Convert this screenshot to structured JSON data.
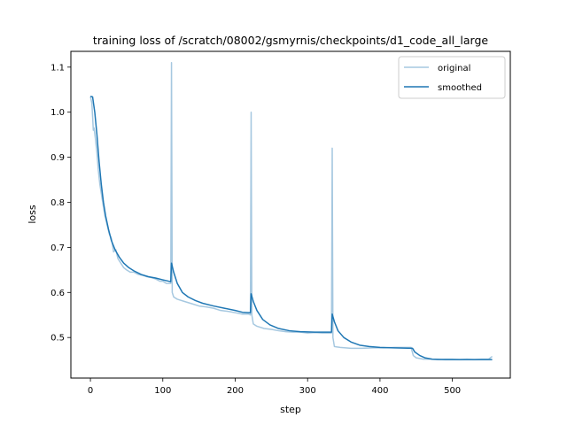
{
  "chart_data": {
    "type": "line",
    "title": "training loss of /scratch/08002/gsmyrnis/checkpoints/d1_code_all_large",
    "xlabel": "step",
    "ylabel": "loss",
    "xlim": [
      -27,
      580
    ],
    "ylim": [
      0.41,
      1.135
    ],
    "xticks": [
      0,
      100,
      200,
      300,
      400,
      500
    ],
    "yticks": [
      0.5,
      0.6,
      0.7,
      0.8,
      0.9,
      1.0,
      1.1
    ],
    "ytick_labels": [
      "0.5",
      "0.6",
      "0.7",
      "0.8",
      "0.9",
      "1.0",
      "1.1"
    ],
    "legend": {
      "position": "top-right",
      "entries": [
        "original",
        "smoothed"
      ]
    },
    "colors": {
      "original": "#a6c8e0",
      "smoothed": "#1f77b4"
    },
    "series": [
      {
        "name": "original",
        "points": [
          [
            0,
            1.035
          ],
          [
            2,
            1.02
          ],
          [
            4,
            0.96
          ],
          [
            5,
            0.965
          ],
          [
            7,
            0.94
          ],
          [
            9,
            0.91
          ],
          [
            11,
            0.87
          ],
          [
            13,
            0.84
          ],
          [
            15,
            0.82
          ],
          [
            17,
            0.8
          ],
          [
            20,
            0.77
          ],
          [
            23,
            0.75
          ],
          [
            26,
            0.73
          ],
          [
            29,
            0.72
          ],
          [
            32,
            0.69
          ],
          [
            35,
            0.695
          ],
          [
            38,
            0.675
          ],
          [
            42,
            0.665
          ],
          [
            46,
            0.655
          ],
          [
            50,
            0.65
          ],
          [
            55,
            0.645
          ],
          [
            60,
            0.645
          ],
          [
            66,
            0.64
          ],
          [
            72,
            0.638
          ],
          [
            78,
            0.635
          ],
          [
            84,
            0.633
          ],
          [
            90,
            0.63
          ],
          [
            96,
            0.625
          ],
          [
            100,
            0.625
          ],
          [
            105,
            0.62
          ],
          [
            109,
            0.62
          ],
          [
            111,
            0.62
          ],
          [
            112,
            1.11
          ],
          [
            113,
            0.6
          ],
          [
            115,
            0.59
          ],
          [
            120,
            0.585
          ],
          [
            130,
            0.58
          ],
          [
            140,
            0.575
          ],
          [
            150,
            0.57
          ],
          [
            160,
            0.568
          ],
          [
            170,
            0.565
          ],
          [
            180,
            0.56
          ],
          [
            190,
            0.558
          ],
          [
            200,
            0.555
          ],
          [
            210,
            0.552
          ],
          [
            218,
            0.552
          ],
          [
            221,
            0.55
          ],
          [
            222,
            1.0
          ],
          [
            223,
            0.55
          ],
          [
            225,
            0.53
          ],
          [
            230,
            0.525
          ],
          [
            240,
            0.52
          ],
          [
            250,
            0.518
          ],
          [
            260,
            0.515
          ],
          [
            270,
            0.513
          ],
          [
            280,
            0.512
          ],
          [
            290,
            0.512
          ],
          [
            300,
            0.51
          ],
          [
            310,
            0.511
          ],
          [
            320,
            0.51
          ],
          [
            330,
            0.51
          ],
          [
            333,
            0.51
          ],
          [
            334,
            0.92
          ],
          [
            335,
            0.5
          ],
          [
            337,
            0.48
          ],
          [
            345,
            0.478
          ],
          [
            360,
            0.476
          ],
          [
            375,
            0.476
          ],
          [
            390,
            0.477
          ],
          [
            405,
            0.477
          ],
          [
            420,
            0.478
          ],
          [
            435,
            0.478
          ],
          [
            443,
            0.478
          ],
          [
            446,
            0.46
          ],
          [
            450,
            0.455
          ],
          [
            460,
            0.452
          ],
          [
            470,
            0.452
          ],
          [
            480,
            0.451
          ],
          [
            490,
            0.452
          ],
          [
            500,
            0.452
          ],
          [
            510,
            0.451
          ],
          [
            520,
            0.452
          ],
          [
            530,
            0.451
          ],
          [
            540,
            0.452
          ],
          [
            550,
            0.452
          ],
          [
            555,
            0.458
          ]
        ]
      },
      {
        "name": "smoothed",
        "points": [
          [
            0,
            1.035
          ],
          [
            3,
            1.034
          ],
          [
            6,
            1.0
          ],
          [
            9,
            0.95
          ],
          [
            12,
            0.89
          ],
          [
            15,
            0.84
          ],
          [
            18,
            0.8
          ],
          [
            21,
            0.77
          ],
          [
            25,
            0.74
          ],
          [
            29,
            0.715
          ],
          [
            34,
            0.695
          ],
          [
            40,
            0.678
          ],
          [
            46,
            0.665
          ],
          [
            53,
            0.655
          ],
          [
            60,
            0.648
          ],
          [
            70,
            0.64
          ],
          [
            80,
            0.635
          ],
          [
            90,
            0.632
          ],
          [
            100,
            0.628
          ],
          [
            108,
            0.625
          ],
          [
            111,
            0.624
          ],
          [
            112,
            0.665
          ],
          [
            115,
            0.645
          ],
          [
            120,
            0.62
          ],
          [
            127,
            0.6
          ],
          [
            135,
            0.59
          ],
          [
            145,
            0.582
          ],
          [
            155,
            0.576
          ],
          [
            170,
            0.57
          ],
          [
            185,
            0.565
          ],
          [
            200,
            0.56
          ],
          [
            210,
            0.556
          ],
          [
            221,
            0.555
          ],
          [
            222,
            0.597
          ],
          [
            225,
            0.58
          ],
          [
            230,
            0.56
          ],
          [
            238,
            0.54
          ],
          [
            248,
            0.528
          ],
          [
            260,
            0.52
          ],
          [
            275,
            0.515
          ],
          [
            290,
            0.513
          ],
          [
            310,
            0.512
          ],
          [
            333,
            0.512
          ],
          [
            334,
            0.552
          ],
          [
            337,
            0.535
          ],
          [
            342,
            0.515
          ],
          [
            350,
            0.5
          ],
          [
            360,
            0.49
          ],
          [
            372,
            0.483
          ],
          [
            385,
            0.48
          ],
          [
            400,
            0.478
          ],
          [
            420,
            0.477
          ],
          [
            445,
            0.476
          ],
          [
            448,
            0.468
          ],
          [
            455,
            0.46
          ],
          [
            462,
            0.455
          ],
          [
            472,
            0.452
          ],
          [
            490,
            0.451
          ],
          [
            510,
            0.451
          ],
          [
            530,
            0.451
          ],
          [
            555,
            0.451
          ]
        ]
      }
    ]
  }
}
